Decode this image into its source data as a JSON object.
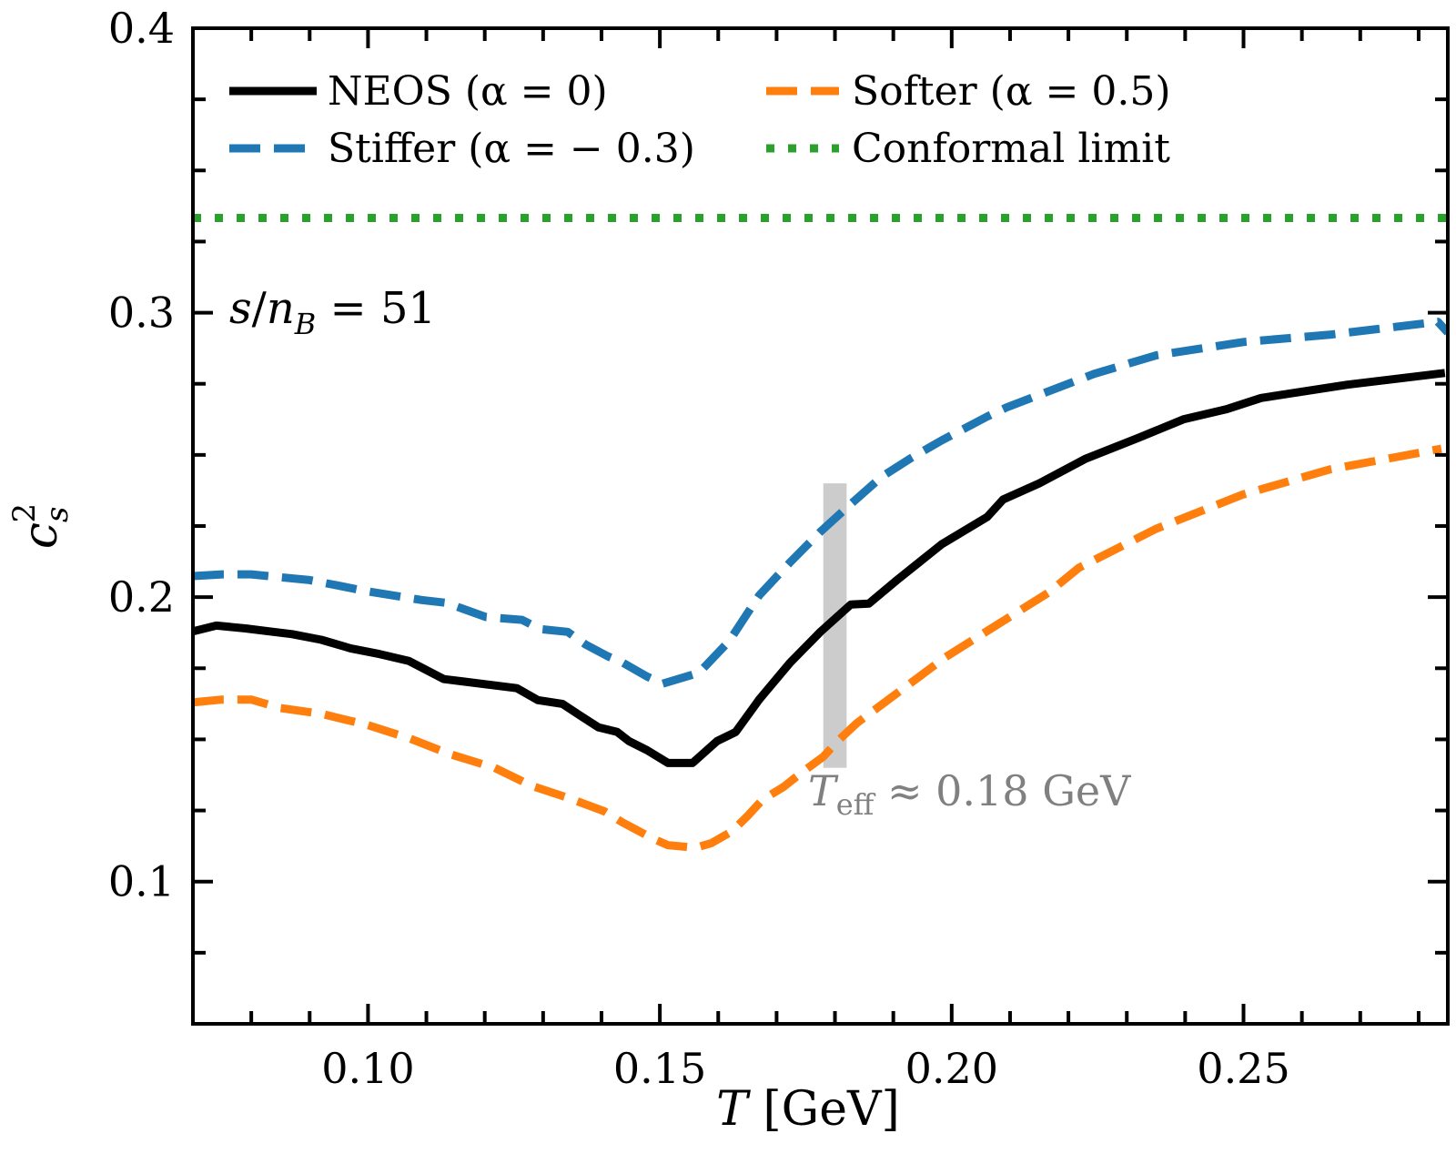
{
  "chart_data": {
    "type": "line",
    "title": "",
    "xlabel": "T [GeV]",
    "xlabel_parts": {
      "var": "T",
      "unit": " [GeV]"
    },
    "ylabel": "c_s^2",
    "ylabel_parts": {
      "base": "c",
      "sub": "s",
      "sup": "2"
    },
    "xlim": [
      0.07,
      0.285
    ],
    "ylim": [
      0.05,
      0.4
    ],
    "x_major_ticks": [
      0.1,
      0.15,
      0.2,
      0.25
    ],
    "x_tick_labels": [
      "0.10",
      "0.15",
      "0.20",
      "0.25"
    ],
    "x_minor_step": 0.01,
    "y_major_ticks": [
      0.1,
      0.2,
      0.3,
      0.4
    ],
    "y_tick_labels": [
      "0.1",
      "0.2",
      "0.3",
      "0.4"
    ],
    "y_minor_step": 0.025,
    "grid": false,
    "legend_position": "top",
    "series": [
      {
        "name": "NEOS (α = 0)",
        "color": "#000000",
        "style": "solid",
        "x": [
          0.07,
          0.074,
          0.079,
          0.083,
          0.087,
          0.092,
          0.097,
          0.102,
          0.107,
          0.113,
          0.1255,
          0.1291,
          0.1333,
          0.1364,
          0.1395,
          0.1427,
          0.1447,
          0.1478,
          0.1514,
          0.1556,
          0.1598,
          0.163,
          0.167,
          0.1723,
          0.1775,
          0.1827,
          0.1858,
          0.1905,
          0.1983,
          0.2061,
          0.2088,
          0.215,
          0.223,
          0.232,
          0.2397,
          0.247,
          0.253,
          0.2678,
          0.2845
        ],
        "y": [
          0.188,
          0.19,
          0.189,
          0.188,
          0.187,
          0.185,
          0.182,
          0.18,
          0.1776,
          0.1712,
          0.168,
          0.1638,
          0.1625,
          0.1583,
          0.1542,
          0.1526,
          0.1494,
          0.1462,
          0.1417,
          0.1417,
          0.1494,
          0.1526,
          0.164,
          0.1769,
          0.1878,
          0.1974,
          0.1977,
          0.2058,
          0.2186,
          0.2282,
          0.2343,
          0.24,
          0.2487,
          0.256,
          0.2625,
          0.266,
          0.27,
          0.2747,
          0.2788
        ]
      },
      {
        "name": "Stiffer (α = − 0.3)",
        "color": "#1f77b4",
        "style": "dashed",
        "x": [
          0.07,
          0.075,
          0.08,
          0.085,
          0.09,
          0.095,
          0.1,
          0.1092,
          0.1134,
          0.1202,
          0.1264,
          0.1295,
          0.1342,
          0.1373,
          0.1411,
          0.1436,
          0.1478,
          0.1505,
          0.1567,
          0.1619,
          0.167,
          0.1723,
          0.1775,
          0.1827,
          0.188,
          0.1931,
          0.1983,
          0.2061,
          0.2094,
          0.2244,
          0.235,
          0.25,
          0.265,
          0.2833,
          0.285
        ],
        "y": [
          0.2074,
          0.208,
          0.208,
          0.207,
          0.206,
          0.204,
          0.202,
          0.199,
          0.198,
          0.193,
          0.192,
          0.1888,
          0.1878,
          0.1833,
          0.1792,
          0.177,
          0.1721,
          0.1696,
          0.1734,
          0.1846,
          0.2006,
          0.2122,
          0.223,
          0.2327,
          0.2423,
          0.249,
          0.2551,
          0.2635,
          0.2667,
          0.2785,
          0.285,
          0.2897,
          0.2923,
          0.2968,
          0.293
        ]
      },
      {
        "name": "Softer (α = 0.5)",
        "color": "#ff7f0e",
        "style": "dashed",
        "x": [
          0.07,
          0.075,
          0.08,
          0.085,
          0.092,
          0.1,
          0.1072,
          0.1139,
          0.1217,
          0.128,
          0.1342,
          0.1405,
          0.1436,
          0.1489,
          0.1514,
          0.1561,
          0.1588,
          0.1623,
          0.165,
          0.1676,
          0.1712,
          0.1744,
          0.178,
          0.1806,
          0.1838,
          0.199,
          0.2166,
          0.2218,
          0.235,
          0.2498,
          0.2648,
          0.2839
        ],
        "y": [
          0.163,
          0.164,
          0.164,
          0.161,
          0.159,
          0.155,
          0.1503,
          0.1449,
          0.14,
          0.1337,
          0.1295,
          0.1247,
          0.1208,
          0.115,
          0.1128,
          0.1119,
          0.1135,
          0.1176,
          0.123,
          0.1288,
          0.1333,
          0.1385,
          0.1439,
          0.1497,
          0.1558,
          0.179,
          0.2016,
          0.2103,
          0.224,
          0.236,
          0.2449,
          0.2522
        ]
      },
      {
        "name": "Conformal limit",
        "color": "#2ca02c",
        "style": "dotted",
        "x": [
          0.07,
          0.285
        ],
        "y": [
          0.3333,
          0.3333
        ]
      }
    ],
    "band": {
      "label": "T_eff ≈ 0.18 GeV",
      "x_range": [
        0.178,
        0.182
      ],
      "y_range": [
        0.14,
        0.24
      ],
      "color": "#cccccc"
    },
    "annotations": [
      {
        "text": "s/n_B = 51",
        "parts": {
          "s": "s",
          "slash": "/",
          "n": "n",
          "sub": "B",
          "rest": " = 51"
        }
      },
      {
        "text": "T_eff ≈ 0.18 GeV",
        "parts": {
          "T": "T",
          "sub": "eff",
          "rest": " ≈ 0.18 GeV"
        },
        "color": "#808080"
      }
    ]
  },
  "legend": [
    {
      "label": "NEOS (α = 0)",
      "color": "#000000",
      "style": "solid"
    },
    {
      "label": "Softer (α = 0.5)",
      "color": "#ff7f0e",
      "style": "dashed"
    },
    {
      "label": "Stiffer (α = − 0.3)",
      "color": "#1f77b4",
      "style": "dashed"
    },
    {
      "label": "Conformal limit",
      "color": "#2ca02c",
      "style": "dotted"
    }
  ]
}
